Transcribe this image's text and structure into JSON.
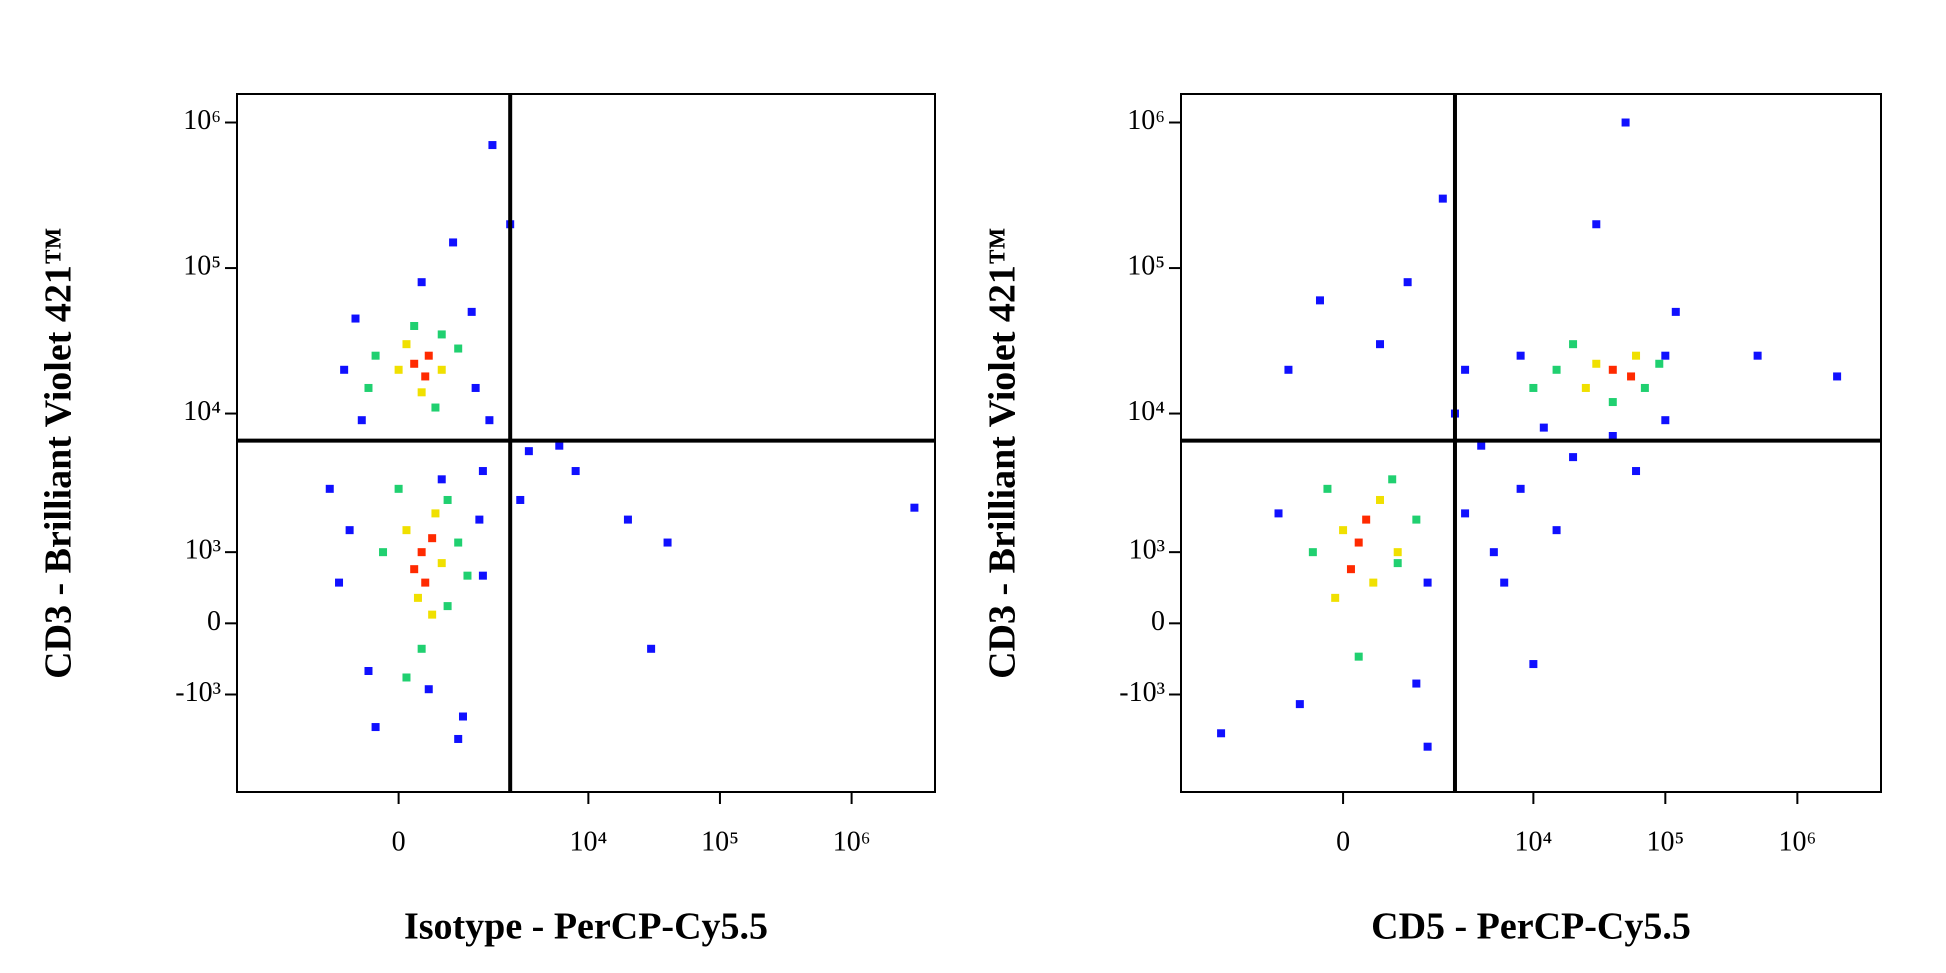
{
  "chart_data": [
    {
      "type": "scatter",
      "scale": "biexponential",
      "xlabel": "Isotype - PerCP-Cy5.5",
      "ylabel": "CD3 - Brilliant Violet 421™",
      "xlim": [
        -6100,
        4300000
      ],
      "ylim": [
        -5200,
        1570000
      ],
      "xticks": [
        0,
        {
          "value": 10000,
          "label": "10⁴"
        },
        {
          "value": 100000,
          "label": "10⁵"
        },
        {
          "value": 1000000,
          "label": "10⁶"
        }
      ],
      "yticks": [
        {
          "value": -1000,
          "label": "-10³"
        },
        0,
        {
          "value": 1000,
          "label": "10³"
        },
        {
          "value": 10000,
          "label": "10⁴"
        },
        {
          "value": 100000,
          "label": "10⁵"
        },
        {
          "value": 1000000,
          "label": "10⁶"
        }
      ],
      "gates": {
        "x": 2500,
        "y": 6500
      },
      "series": [
        {
          "color": "#1010ff",
          "x": [
            -800,
            1300,
            300,
            800,
            -500,
            1500,
            -900,
            1500,
            400,
            -400,
            1000,
            3500,
            6000,
            20000,
            40000,
            3000,
            2500,
            1800,
            3000000,
            8000,
            30000,
            -1100,
            1700,
            -600,
            1200,
            900,
            -300,
            600,
            1400,
            -700
          ],
          "values": [
            20000,
            15000,
            80000,
            150000,
            9000,
            4000,
            500,
            600,
            -900,
            -600,
            -1500,
            5500,
            6000,
            1800,
            1200,
            2500,
            200000,
            700000,
            2200,
            4000,
            -300,
            3000,
            9000,
            45000,
            50000,
            -2200,
            -1800,
            3500,
            1800,
            1500
          ]
        },
        {
          "color": "#20d070",
          "x": [
            -300,
            900,
            200,
            500,
            -200,
            900,
            300,
            700,
            0,
            600,
            -400,
            1100,
            100,
            700
          ],
          "values": [
            25000,
            28000,
            40000,
            11000,
            1000,
            1200,
            -300,
            2500,
            3000,
            35000,
            15000,
            600,
            -700,
            200
          ]
        },
        {
          "color": "#f0e000",
          "x": [
            100,
            600,
            300,
            100,
            600,
            250,
            500,
            0,
            450
          ],
          "values": [
            30000,
            20000,
            14000,
            1500,
            800,
            300,
            2000,
            20000,
            100
          ]
        },
        {
          "color": "#ff2a00",
          "x": [
            200,
            400,
            350,
            300,
            200,
            450,
            350
          ],
          "values": [
            22000,
            25000,
            18000,
            1000,
            700,
            1300,
            500
          ]
        }
      ]
    },
    {
      "type": "scatter",
      "scale": "biexponential",
      "xlabel": "CD5 - PerCP-Cy5.5",
      "ylabel": "CD3 - Brilliant Violet 421™",
      "xlim": [
        -6100,
        4300000
      ],
      "ylim": [
        -5200,
        1570000
      ],
      "xticks": [
        0,
        {
          "value": 10000,
          "label": "10⁴"
        },
        {
          "value": 100000,
          "label": "10⁵"
        },
        {
          "value": 1000000,
          "label": "10⁶"
        }
      ],
      "yticks": [
        {
          "value": -1000,
          "label": "-10³"
        },
        0,
        {
          "value": 1000,
          "label": "10³"
        },
        {
          "value": 10000,
          "label": "10⁴"
        },
        {
          "value": 100000,
          "label": "10⁵"
        },
        {
          "value": 1000000,
          "label": "10⁶"
        }
      ],
      "gates": {
        "x": 2500,
        "y": 6500
      },
      "series": [
        {
          "color": "#1010ff",
          "x": [
            -1000,
            1200,
            -600,
            1500,
            3000,
            5000,
            8000,
            4000,
            12000,
            20000,
            60000,
            100000,
            3000,
            8000,
            100000,
            500,
            -300,
            1000,
            -800,
            2000,
            50000,
            30000,
            500000,
            2000000,
            -3000,
            10000,
            1500,
            6000,
            15000,
            40000,
            2500,
            120000
          ],
          "values": [
            2000,
            -800,
            -1200,
            500,
            2000,
            1000,
            3000,
            6000,
            8000,
            5000,
            4000,
            9000,
            20000,
            25000,
            25000,
            30000,
            60000,
            80000,
            20000,
            300000,
            1000000,
            200000,
            25000,
            18000,
            -2000,
            -500,
            -2500,
            500,
            1500,
            7000,
            10000,
            50000
          ]
        },
        {
          "color": "#20d070",
          "x": [
            -400,
            800,
            200,
            700,
            15000,
            40000,
            70000,
            20000,
            -200,
            1200,
            10000,
            90000
          ],
          "values": [
            1000,
            800,
            -400,
            3500,
            20000,
            12000,
            15000,
            30000,
            3000,
            1800,
            15000,
            22000
          ]
        },
        {
          "color": "#f0e000",
          "x": [
            0,
            400,
            -100,
            500,
            30000,
            25000,
            60000,
            800
          ],
          "values": [
            1500,
            500,
            300,
            2500,
            22000,
            15000,
            25000,
            1000
          ]
        },
        {
          "color": "#ff2a00",
          "x": [
            200,
            100,
            300,
            40000,
            55000
          ],
          "values": [
            1200,
            700,
            1800,
            20000,
            18000
          ]
        }
      ]
    }
  ]
}
